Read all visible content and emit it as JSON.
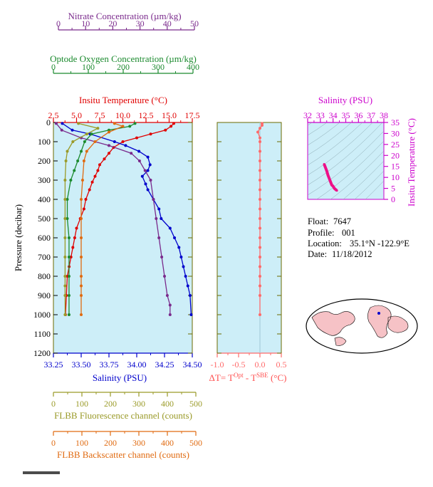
{
  "colors": {
    "nitrate": "#7a2a8c",
    "oxygen": "#1b8a2e",
    "temperature": "#e00000",
    "salinity": "#0000cc",
    "fluorescence": "#9a9a28",
    "backscatter": "#e06a10",
    "delta": "#ff6a6a",
    "ts_axis": "#cc00cc",
    "plot_bg": "#cdeef8",
    "axis_olive": "#6b6b00"
  },
  "axes": {
    "nitrate": {
      "title": "Nitrate Concentration (µm/kg)",
      "ticks": [
        "0",
        "10",
        "20",
        "30",
        "40",
        "50"
      ],
      "range": [
        0,
        50
      ]
    },
    "oxygen": {
      "title": "Optode Oxygen Concentration (µm/kg)",
      "ticks": [
        "0",
        "100",
        "200",
        "300",
        "400"
      ],
      "range": [
        0,
        400
      ]
    },
    "temperature": {
      "title": "Insitu Temperature (°C)",
      "ticks": [
        "2.5",
        "5.0",
        "7.5",
        "10.0",
        "12.5",
        "15.0",
        "17.5"
      ],
      "range": [
        2.5,
        17.5
      ]
    },
    "pressure": {
      "title": "Pressure (decibar)",
      "ticks": [
        "0",
        "100",
        "200",
        "300",
        "400",
        "500",
        "600",
        "700",
        "800",
        "900",
        "1000",
        "1100",
        "1200"
      ],
      "range": [
        0,
        1200
      ]
    },
    "salinity": {
      "title": "Salinity (PSU)",
      "ticks": [
        "33.25",
        "33.50",
        "33.75",
        "34.00",
        "34.25",
        "34.50"
      ],
      "range": [
        33.25,
        34.5
      ]
    },
    "fluorescence": {
      "title": "FLBB Fluorescence channel (counts)",
      "ticks": [
        "0",
        "100",
        "200",
        "300",
        "400",
        "500"
      ],
      "range": [
        0,
        500
      ]
    },
    "backscatter": {
      "title": "FLBB Backscatter channel (counts)",
      "ticks": [
        "0",
        "100",
        "200",
        "300",
        "400",
        "500"
      ],
      "range": [
        0,
        500
      ]
    },
    "delta_t": {
      "title_main": "ΔT= T",
      "title_sup1": "Opt",
      "title_mid": " - T",
      "title_sup2": "SBE",
      "title_end": " (°C)",
      "ticks": [
        "-1.0",
        "-0.5",
        "0.0",
        "0.5"
      ],
      "range": [
        -1.0,
        0.5
      ]
    },
    "ts_salinity": {
      "title": "Salinity (PSU)",
      "ticks": [
        "32",
        "33",
        "34",
        "35",
        "36",
        "37",
        "38"
      ],
      "range": [
        32,
        38
      ]
    },
    "ts_temperature": {
      "title": "Insitu Temperature (°C)",
      "ticks": [
        "0",
        "5",
        "10",
        "15",
        "20",
        "25",
        "30",
        "35"
      ],
      "range": [
        0,
        35
      ]
    }
  },
  "info": {
    "float_label": "Float:",
    "float_value": "7647",
    "profile_label": "Profile:",
    "profile_value": "001",
    "location_label": "Location:",
    "location_value": "35.1°N  -122.9°E",
    "date_label": "Date:",
    "date_value": "11/18/2012"
  },
  "chart_data": {
    "type": "line",
    "y_axis": "pressure",
    "ylim": [
      0,
      1200
    ],
    "series": [
      {
        "name": "Insitu Temperature",
        "axis": "temperature",
        "x": [
          15.5,
          15.2,
          14.6,
          13.0,
          11.5,
          10.0,
          9.0,
          8.5,
          8.0,
          7.5,
          7.3,
          7.0,
          6.7,
          6.4,
          6.0,
          5.8,
          5.4,
          5.0,
          4.8,
          4.6,
          4.4,
          4.2,
          4.0,
          3.9,
          3.8
        ],
        "y": [
          5,
          20,
          40,
          60,
          80,
          100,
          130,
          160,
          190,
          220,
          250,
          280,
          310,
          350,
          400,
          450,
          500,
          550,
          600,
          650,
          700,
          750,
          800,
          900,
          1000
        ]
      },
      {
        "name": "Salinity",
        "axis": "salinity",
        "x": [
          33.33,
          33.42,
          33.58,
          33.8,
          33.9,
          34.02,
          34.1,
          34.12,
          34.1,
          34.05,
          34.08,
          34.1,
          34.15,
          34.2,
          34.22,
          34.3,
          34.34,
          34.38,
          34.4,
          34.42,
          34.44,
          34.46,
          34.48,
          34.49
        ],
        "y": [
          5,
          40,
          60,
          100,
          120,
          150,
          180,
          220,
          250,
          280,
          320,
          350,
          400,
          450,
          500,
          550,
          600,
          650,
          700,
          750,
          800,
          850,
          900,
          1000
        ]
      },
      {
        "name": "Nitrate Concentration",
        "axis": "nitrate",
        "x": [
          1,
          3,
          10,
          20,
          28,
          31,
          33,
          35,
          36,
          37,
          38,
          39,
          40,
          41,
          42,
          42
        ],
        "y": [
          5,
          40,
          80,
          120,
          160,
          200,
          250,
          300,
          400,
          500,
          600,
          700,
          800,
          900,
          950,
          1000
        ]
      },
      {
        "name": "Optode Oxygen Concentration",
        "axis": "oxygen",
        "x": [
          235,
          220,
          160,
          110,
          90,
          80,
          70,
          60,
          50,
          40,
          40,
          45,
          45,
          45,
          45,
          45
        ],
        "y": [
          5,
          20,
          40,
          60,
          100,
          150,
          200,
          250,
          300,
          400,
          500,
          600,
          700,
          800,
          900,
          1000
        ]
      },
      {
        "name": "FLBB Fluorescence channel",
        "axis": "fluorescence",
        "x": [
          90,
          160,
          120,
          70,
          50,
          45,
          42,
          42,
          42,
          42,
          42,
          42,
          42,
          42,
          42
        ],
        "y": [
          5,
          30,
          60,
          100,
          150,
          200,
          300,
          400,
          500,
          600,
          700,
          800,
          850,
          900,
          1000
        ]
      },
      {
        "name": "FLBB Backscatter channel",
        "axis": "backscatter",
        "x": [
          220,
          250,
          200,
          150,
          120,
          110,
          105,
          100,
          100,
          100,
          100,
          100,
          100,
          100,
          100
        ],
        "y": [
          5,
          20,
          50,
          100,
          150,
          200,
          300,
          400,
          500,
          600,
          700,
          800,
          850,
          900,
          1000
        ]
      },
      {
        "name": "ΔT",
        "axis": "delta_t",
        "x": [
          0.05,
          0.05,
          0.0,
          -0.05,
          0.0,
          0.0,
          0.0,
          0.0,
          0.0,
          0.0,
          0.0,
          0.0,
          0.0,
          0.0,
          0.0,
          0.0,
          0.0,
          0.0,
          0.0,
          0.0,
          0.0,
          0.0,
          0.0
        ],
        "y": [
          5,
          15,
          30,
          50,
          80,
          100,
          150,
          200,
          250,
          300,
          350,
          400,
          450,
          500,
          550,
          600,
          650,
          700,
          750,
          800,
          850,
          900,
          1000
        ]
      },
      {
        "name": "T-S",
        "axis": "ts",
        "x": [
          33.3,
          33.4,
          33.5,
          33.6,
          33.7,
          33.8,
          33.9,
          34.0,
          34.1,
          34.2,
          34.3
        ],
        "y": [
          16,
          14.5,
          13,
          11,
          9.5,
          8,
          6.5,
          6,
          5,
          4.5,
          4
        ]
      }
    ]
  }
}
